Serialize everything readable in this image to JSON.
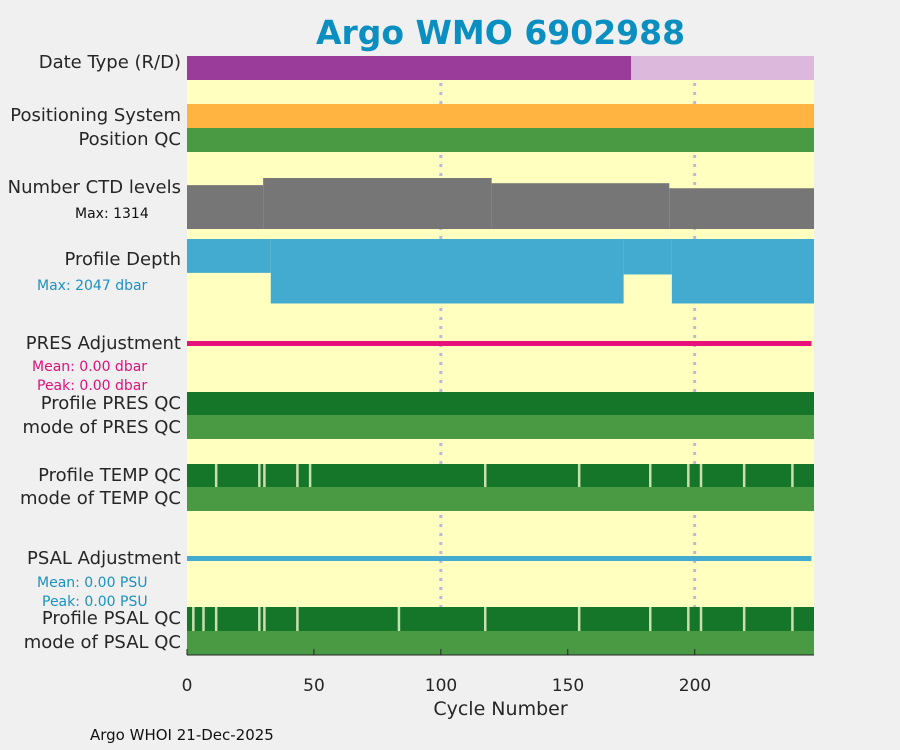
{
  "title": "Argo WMO 6902988",
  "footer": "Argo WHOI 21-Dec-2025",
  "xlabel": "Cycle Number",
  "xticks": [
    "0",
    "50",
    "100",
    "150",
    "200"
  ],
  "rows": {
    "date_type": "Date Type (R/D)",
    "positioning": "Positioning System",
    "position_qc": "Position QC",
    "ctd_levels": "Number CTD levels",
    "ctd_max": "Max: 1314",
    "profile_depth": "Profile Depth",
    "depth_max": "Max: 2047 dbar",
    "pres_adj": "PRES Adjustment",
    "pres_mean": "Mean: 0.00 dbar",
    "pres_peak": "Peak: 0.00 dbar",
    "pres_qc": "Profile PRES QC",
    "pres_mode": "mode of PRES QC",
    "temp_qc": "Profile TEMP QC",
    "temp_mode": "mode of TEMP QC",
    "psal_adj": "PSAL Adjustment",
    "psal_mean": "Mean: 0.00 PSU",
    "psal_peak": "Peak: 0.00 PSU",
    "psal_qc": "Profile PSAL QC",
    "psal_mode": "mode of PSAL QC"
  },
  "colors": {
    "background": "#ffffc0",
    "date_realtime": "#9a3c9a",
    "date_delayed": "#dcb8dc",
    "positioning": "#ffb340",
    "qc_good": "#4a9a44",
    "profile_qc_A": "#157528",
    "gap": "#c8e0b0",
    "ctd": "#767676",
    "depth": "#43aad0",
    "pres_adj": "#e8107a",
    "psal_adj": "#43aad0",
    "title": "#0a8fc0"
  },
  "chart_data": {
    "type": "bar",
    "xlim": [
      0,
      247
    ],
    "xticks": [
      0,
      50,
      100,
      150,
      200
    ],
    "gridlines_x": [
      100,
      200
    ],
    "n_cycles": 247,
    "date_type": [
      {
        "from": 0,
        "to": 175,
        "value": "R"
      },
      {
        "from": 175,
        "to": 247,
        "value": "D"
      }
    ],
    "ctd_levels_max": 1314,
    "ctd_levels_segments": [
      {
        "from": 0,
        "to": 30,
        "value": 1130
      },
      {
        "from": 30,
        "to": 120,
        "value": 1314
      },
      {
        "from": 120,
        "to": 190,
        "value": 1180
      },
      {
        "from": 190,
        "to": 247,
        "value": 1050
      }
    ],
    "profile_depth_max": 2047,
    "profile_depth_segments": [
      {
        "from": 0,
        "to": 33,
        "value": 1050
      },
      {
        "from": 33,
        "to": 172,
        "value": 2000
      },
      {
        "from": 172,
        "to": 191,
        "value": 1100
      },
      {
        "from": 191,
        "to": 247,
        "value": 2000
      }
    ],
    "pres_adjustment": {
      "mean": 0.0,
      "peak": 0.0,
      "unit": "dbar"
    },
    "psal_adjustment": {
      "mean": 0.0,
      "peak": 0.0,
      "unit": "PSU"
    },
    "temp_qc_gaps": [
      11,
      28,
      30,
      43,
      48,
      117,
      154,
      182,
      197,
      202,
      219,
      238
    ],
    "psal_qc_gaps": [
      2,
      6,
      11,
      28,
      30,
      43,
      83,
      117,
      154,
      182,
      197,
      202,
      219,
      238
    ]
  }
}
